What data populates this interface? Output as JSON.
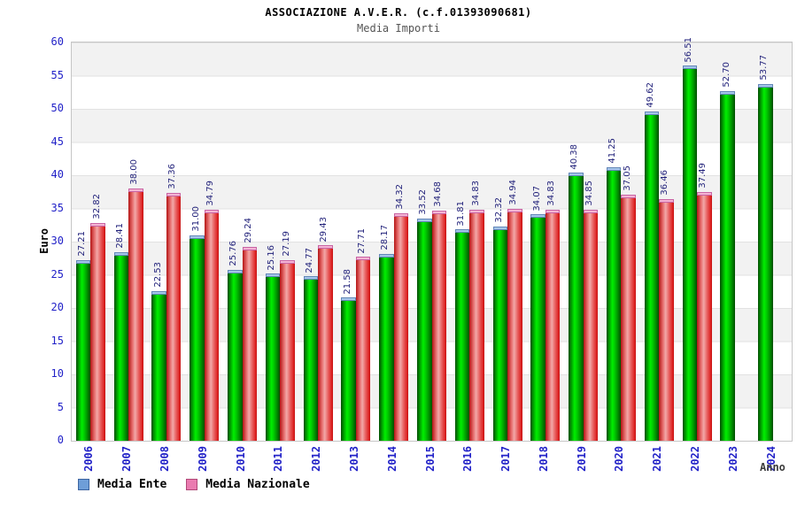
{
  "header": {
    "title": "ASSOCIAZIONE A.V.E.R. (c.f.01393090681)",
    "subtitle": "Media Importi"
  },
  "chart_data": {
    "type": "bar",
    "title": "ASSOCIAZIONE A.V.E.R. (c.f.01393090681)",
    "subtitle": "Media Importi",
    "xlabel": "Anno",
    "ylabel": "Euro",
    "ylim": [
      0,
      60
    ],
    "yticks": [
      0,
      5,
      10,
      15,
      20,
      25,
      30,
      35,
      40,
      45,
      50,
      55,
      60
    ],
    "grid": "horizontal-bands",
    "legend_position": "bottom-left",
    "value_label_decimals": 2,
    "categories": [
      "2006",
      "2007",
      "2008",
      "2009",
      "2010",
      "2011",
      "2012",
      "2013",
      "2014",
      "2015",
      "2016",
      "2017",
      "2018",
      "2019",
      "2020",
      "2021",
      "2022",
      "2023",
      "2024"
    ],
    "series": [
      {
        "name": "Media Ente",
        "bar_color": "#00cc00",
        "legend_color": "#6e9ed8",
        "values": [
          27.21,
          28.41,
          22.53,
          31.0,
          25.76,
          25.16,
          24.77,
          21.58,
          28.17,
          33.52,
          31.81,
          32.32,
          34.07,
          40.38,
          41.25,
          49.62,
          56.51,
          52.7,
          53.77
        ]
      },
      {
        "name": "Media Nazionale",
        "bar_color": "#dd2222",
        "legend_color": "#ea7bb0",
        "values": [
          32.82,
          38.0,
          37.36,
          34.79,
          29.24,
          27.19,
          29.43,
          27.71,
          34.32,
          34.68,
          34.83,
          34.94,
          34.83,
          34.85,
          37.05,
          36.46,
          37.49,
          null,
          null
        ]
      }
    ]
  },
  "colors": {
    "tick_label": "#2222c8",
    "value_label": "#1e1e78",
    "band_gray": "#f2f2f2",
    "plot_border": "#c6c6c6"
  }
}
